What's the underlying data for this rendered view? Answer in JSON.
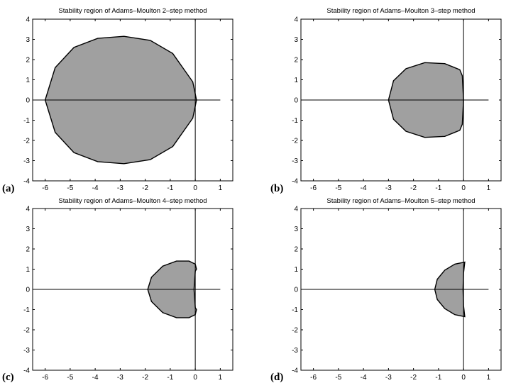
{
  "chart_data": [
    {
      "type": "area",
      "panel_label": "(a)",
      "title": "Stability region of Adams–Moulton 2–step method",
      "xlabel": "",
      "ylabel": "",
      "xlim": [
        -6.5,
        1.5
      ],
      "ylim": [
        -4,
        4
      ],
      "xticks": [
        "-6",
        "-5",
        "-4",
        "-3",
        "-2",
        "-1",
        "0",
        "1"
      ],
      "yticks": [
        "4",
        "3",
        "2",
        "1",
        "0",
        "-1",
        "-2",
        "-3",
        "-4"
      ],
      "fill_color": "#a0a0a0",
      "series": [
        {
          "x": [
            -6.0,
            -5.6,
            -4.85,
            -3.9,
            -2.85,
            -1.8,
            -0.9,
            -0.1,
            0.05,
            -0.1,
            -0.9,
            -1.8,
            -2.85,
            -3.9,
            -4.85,
            -5.6,
            -6.0
          ],
          "y": [
            0.0,
            1.6,
            2.6,
            3.05,
            3.15,
            2.95,
            2.3,
            0.9,
            0.0,
            -0.9,
            -2.3,
            -2.95,
            -3.15,
            -3.05,
            -2.6,
            -1.6,
            0.0
          ]
        }
      ]
    },
    {
      "type": "area",
      "panel_label": "(b)",
      "title": "Stability region of Adams–Moulton 3–step method",
      "xlabel": "",
      "ylabel": "",
      "xlim": [
        -6.5,
        1.5
      ],
      "ylim": [
        -4,
        4
      ],
      "xticks": [
        "-6",
        "-5",
        "-4",
        "-3",
        "-2",
        "-1",
        "0",
        "1"
      ],
      "yticks": [
        "4",
        "3",
        "2",
        "1",
        "0",
        "-1",
        "-2",
        "-3",
        "-4"
      ],
      "fill_color": "#a0a0a0",
      "series": [
        {
          "x": [
            -3.0,
            -2.8,
            -2.3,
            -1.55,
            -0.75,
            -0.15,
            -0.05,
            0.0,
            -0.05,
            -0.15,
            -0.75,
            -1.55,
            -2.3,
            -2.8,
            -3.0
          ],
          "y": [
            0.0,
            0.95,
            1.55,
            1.85,
            1.8,
            1.5,
            1.2,
            0.0,
            -1.2,
            -1.5,
            -1.8,
            -1.85,
            -1.55,
            -0.95,
            0.0
          ]
        }
      ]
    },
    {
      "type": "area",
      "panel_label": "(c)",
      "title": "Stability region of Adams–Moulton 4–step method",
      "xlabel": "",
      "ylabel": "",
      "xlim": [
        -6.5,
        1.5
      ],
      "ylim": [
        -4,
        4
      ],
      "xticks": [
        "-6",
        "-5",
        "-4",
        "-3",
        "-2",
        "-1",
        "0",
        "1"
      ],
      "yticks": [
        "4",
        "3",
        "2",
        "1",
        "0",
        "-1",
        "-2",
        "-3",
        "-4"
      ],
      "fill_color": "#a0a0a0",
      "series": [
        {
          "x": [
            -1.9,
            -1.75,
            -1.3,
            -0.75,
            -0.25,
            0.0,
            0.05,
            0.0,
            -0.05,
            0.0,
            0.05,
            0.0,
            -0.25,
            -0.75,
            -1.3,
            -1.75,
            -1.9
          ],
          "y": [
            0.0,
            0.6,
            1.15,
            1.4,
            1.4,
            1.25,
            1.0,
            0.9,
            0.0,
            -0.9,
            -1.0,
            -1.25,
            -1.4,
            -1.4,
            -1.15,
            -0.6,
            0.0
          ]
        }
      ]
    },
    {
      "type": "area",
      "panel_label": "(d)",
      "title": "Stability region of Adams–Moulton 5–step method",
      "xlabel": "",
      "ylabel": "",
      "xlim": [
        -6.5,
        1.5
      ],
      "ylim": [
        -4,
        4
      ],
      "xticks": [
        "-6",
        "-5",
        "-4",
        "-3",
        "-2",
        "-1",
        "0",
        "1"
      ],
      "yticks": [
        "4",
        "3",
        "2",
        "1",
        "0",
        "-1",
        "-2",
        "-3",
        "-4"
      ],
      "fill_color": "#a0a0a0",
      "series": [
        {
          "x": [
            -1.15,
            -1.05,
            -0.75,
            -0.35,
            0.05,
            0.0,
            -0.02,
            0.0,
            0.05,
            -0.35,
            -0.75,
            -1.05,
            -1.15
          ],
          "y": [
            0.0,
            0.5,
            0.95,
            1.25,
            1.35,
            0.8,
            0.0,
            -0.8,
            -1.35,
            -1.25,
            -0.95,
            -0.5,
            0.0
          ]
        }
      ]
    }
  ]
}
